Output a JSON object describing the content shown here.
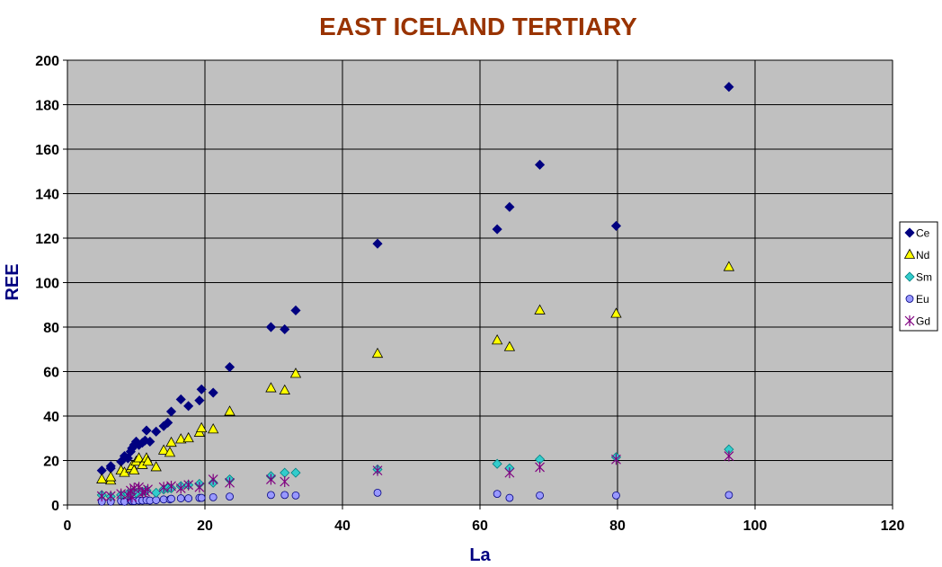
{
  "chart_data": {
    "type": "scatter",
    "title": "EAST ICELAND TERTIARY",
    "xlabel": "La",
    "ylabel": "REE",
    "xlim": [
      0,
      120
    ],
    "ylim": [
      0,
      200
    ],
    "xticks": [
      0,
      20,
      40,
      60,
      80,
      100,
      120
    ],
    "yticks": [
      0,
      20,
      40,
      60,
      80,
      100,
      120,
      140,
      160,
      180,
      200
    ],
    "grid": true,
    "plot_background": "#c0c0c0",
    "legend_position": "right",
    "series": [
      {
        "name": "Ce",
        "marker": "diamond",
        "color": "#000080",
        "points": [
          [
            5,
            15.5
          ],
          [
            6.3,
            16.5
          ],
          [
            6.3,
            17.5
          ],
          [
            7.8,
            19.5
          ],
          [
            8.3,
            22
          ],
          [
            8.8,
            21
          ],
          [
            9.2,
            24
          ],
          [
            9.4,
            25.5
          ],
          [
            9.7,
            27
          ],
          [
            10,
            28.5
          ],
          [
            10.4,
            27
          ],
          [
            10.9,
            28
          ],
          [
            11.3,
            29
          ],
          [
            11.5,
            33.5
          ],
          [
            12,
            28.5
          ],
          [
            12.9,
            33
          ],
          [
            14,
            35.5
          ],
          [
            14.6,
            37
          ],
          [
            15.1,
            42
          ],
          [
            16.5,
            47.5
          ],
          [
            17.6,
            44.5
          ],
          [
            19.2,
            47
          ],
          [
            19.5,
            52
          ],
          [
            21.2,
            50.5
          ],
          [
            23.6,
            62
          ],
          [
            29.6,
            80
          ],
          [
            31.6,
            79
          ],
          [
            33.2,
            87.5
          ],
          [
            45.1,
            117.5
          ],
          [
            62.5,
            124
          ],
          [
            64.3,
            134
          ],
          [
            68.7,
            153
          ],
          [
            79.8,
            125.5
          ],
          [
            96.2,
            188
          ]
        ]
      },
      {
        "name": "Nd",
        "marker": "triangle",
        "color": "#ffff00",
        "points": [
          [
            5,
            11.5
          ],
          [
            6.3,
            11
          ],
          [
            6.3,
            12.5
          ],
          [
            7.8,
            15.5
          ],
          [
            8.3,
            14.5
          ],
          [
            9.2,
            16.5
          ],
          [
            9.4,
            17.5
          ],
          [
            9.7,
            15.5
          ],
          [
            10,
            19.5
          ],
          [
            10.4,
            21
          ],
          [
            10.9,
            18
          ],
          [
            11.5,
            21
          ],
          [
            11.7,
            19.5
          ],
          [
            12.9,
            17
          ],
          [
            14,
            24.5
          ],
          [
            14.9,
            23.5
          ],
          [
            15.1,
            28
          ],
          [
            16.5,
            29.5
          ],
          [
            17.6,
            30
          ],
          [
            19.2,
            32.5
          ],
          [
            19.5,
            34.5
          ],
          [
            21.2,
            34
          ],
          [
            23.6,
            42
          ],
          [
            29.6,
            52.5
          ],
          [
            31.6,
            51.5
          ],
          [
            33.2,
            59
          ],
          [
            45.1,
            68
          ],
          [
            62.5,
            74
          ],
          [
            64.3,
            71
          ],
          [
            68.7,
            87.5
          ],
          [
            79.8,
            86
          ],
          [
            96.2,
            107
          ]
        ]
      },
      {
        "name": "Sm",
        "marker": "diamond",
        "color": "#33cccc",
        "points": [
          [
            5,
            4.5
          ],
          [
            6.3,
            3.8
          ],
          [
            7.8,
            4.5
          ],
          [
            8.8,
            5
          ],
          [
            9.4,
            5.5
          ],
          [
            10,
            5.5
          ],
          [
            10.9,
            6
          ],
          [
            11.5,
            6.5
          ],
          [
            12.9,
            5.5
          ],
          [
            14,
            7
          ],
          [
            14.6,
            7.5
          ],
          [
            15.1,
            7.5
          ],
          [
            16.5,
            8.5
          ],
          [
            17.6,
            9
          ],
          [
            19.2,
            9.5
          ],
          [
            21.2,
            10
          ],
          [
            23.6,
            11.5
          ],
          [
            29.6,
            13
          ],
          [
            31.6,
            14.5
          ],
          [
            33.2,
            14.5
          ],
          [
            45.1,
            16
          ],
          [
            62.5,
            18.5
          ],
          [
            64.3,
            16.5
          ],
          [
            68.7,
            20.5
          ],
          [
            79.8,
            21.5
          ],
          [
            96.2,
            25
          ]
        ]
      },
      {
        "name": "Eu",
        "marker": "circle",
        "color": "#9999ff",
        "points": [
          [
            5,
            1.5
          ],
          [
            6.3,
            1.5
          ],
          [
            7.8,
            1.8
          ],
          [
            8.3,
            1.5
          ],
          [
            9.2,
            2
          ],
          [
            9.4,
            1.8
          ],
          [
            9.7,
            1.8
          ],
          [
            10.4,
            2
          ],
          [
            10.9,
            2
          ],
          [
            11.5,
            2.2
          ],
          [
            12,
            2
          ],
          [
            12.9,
            2.2
          ],
          [
            14,
            2.5
          ],
          [
            14.9,
            2.5
          ],
          [
            15.1,
            2.8
          ],
          [
            16.5,
            3
          ],
          [
            17.6,
            3
          ],
          [
            19.2,
            3.2
          ],
          [
            19.5,
            3.2
          ],
          [
            21.2,
            3.5
          ],
          [
            23.6,
            3.8
          ],
          [
            29.6,
            4.5
          ],
          [
            31.6,
            4.5
          ],
          [
            33.2,
            4.3
          ],
          [
            45.1,
            5.5
          ],
          [
            62.5,
            5
          ],
          [
            64.3,
            3.2
          ],
          [
            68.7,
            4.3
          ],
          [
            79.8,
            4.3
          ],
          [
            96.2,
            4.5
          ]
        ]
      },
      {
        "name": "Gd",
        "marker": "star",
        "color": "#800080",
        "points": [
          [
            5,
            4
          ],
          [
            6.3,
            4
          ],
          [
            7.8,
            5
          ],
          [
            8.8,
            4.5
          ],
          [
            9.2,
            6.5
          ],
          [
            9.4,
            3.5
          ],
          [
            9.7,
            7.5
          ],
          [
            10.4,
            8
          ],
          [
            10.9,
            5.5
          ],
          [
            11.3,
            6
          ],
          [
            11.7,
            7
          ],
          [
            14,
            8
          ],
          [
            15.1,
            8.5
          ],
          [
            16.5,
            7.5
          ],
          [
            17.6,
            9
          ],
          [
            19.2,
            8
          ],
          [
            21.2,
            11.5
          ],
          [
            23.6,
            10
          ],
          [
            29.6,
            11.5
          ],
          [
            31.6,
            10.5
          ],
          [
            45.1,
            15.5
          ],
          [
            64.3,
            14.5
          ],
          [
            68.7,
            17
          ],
          [
            79.8,
            20.5
          ],
          [
            96.2,
            22
          ]
        ]
      }
    ]
  }
}
